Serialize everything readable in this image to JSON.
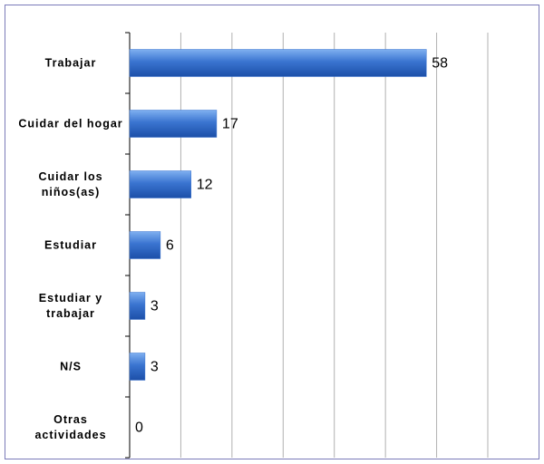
{
  "chart_data": {
    "type": "bar",
    "orientation": "horizontal",
    "categories": [
      "Trabajar",
      "Cuidar del hogar",
      "Cuidar los niños(as)",
      "Estudiar",
      "Estudiar y trabajar",
      "N/S",
      "Otras actividades"
    ],
    "values": [
      58,
      17,
      12,
      6,
      3,
      3,
      0
    ],
    "color": "#3a74d0",
    "xlim": [
      0,
      70
    ],
    "xticks": [
      0,
      10,
      20,
      30,
      40,
      50,
      60,
      70
    ],
    "grid": true
  }
}
